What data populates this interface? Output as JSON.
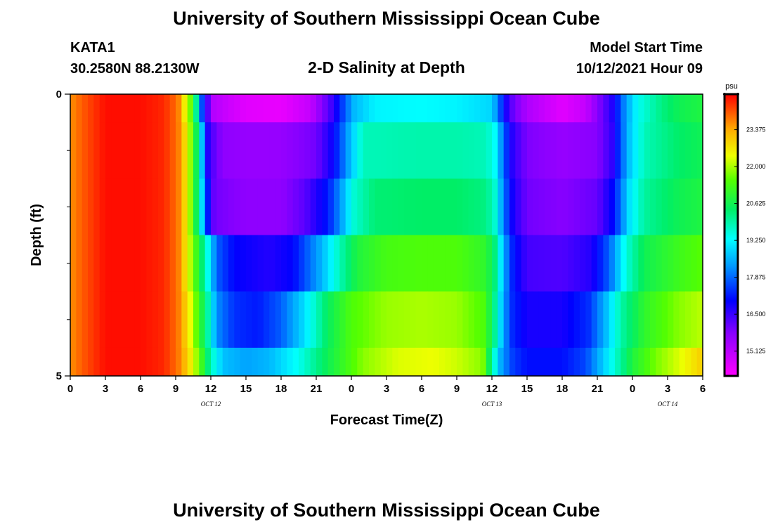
{
  "header": {
    "title": "University of Southern Mississippi Ocean Cube",
    "station": "KATA1",
    "coords": "30.2580N  88.2130W",
    "plot_title": "2-D Salinity at Depth",
    "model_label": "Model Start Time",
    "model_time": "10/12/2021 Hour 09"
  },
  "footer": {
    "title": "University of Southern Mississippi Ocean Cube"
  },
  "chart_data": {
    "type": "heatmap",
    "title": "2-D Salinity at Depth",
    "xlabel": "Forecast Time(Z)",
    "ylabel": "Depth (ft)",
    "x_unit": "hours since 10/12/2021 00Z",
    "x_tick_hours": [
      0,
      3,
      6,
      9,
      12,
      15,
      18,
      21,
      24,
      27,
      30,
      33,
      36,
      39,
      42,
      45,
      48,
      51,
      54
    ],
    "x_tick_labels": [
      "0",
      "3",
      "6",
      "9",
      "12",
      "15",
      "18",
      "21",
      "0",
      "3",
      "6",
      "9",
      "12",
      "15",
      "18",
      "21",
      "0",
      "3",
      "6"
    ],
    "date_labels": [
      {
        "hour": 12,
        "text": "OCT 12"
      },
      {
        "hour": 36,
        "text": "OCT 13"
      },
      {
        "hour": 51,
        "text": "OCT 14"
      }
    ],
    "xlim": [
      0,
      54
    ],
    "ylim": [
      0,
      5
    ],
    "y_tick_labels": [
      {
        "value": 0,
        "text": "0"
      },
      {
        "value": 5,
        "text": "5"
      }
    ],
    "y_minor_ticks": [
      1,
      2,
      3,
      4
    ],
    "depth_bounds": [
      0,
      0.5,
      1.5,
      2.5,
      3.5,
      4.5,
      5
    ],
    "colorbar": {
      "unit": "psu",
      "min": 14.2,
      "max": 24.7,
      "tick_values": [
        23.375,
        22.0,
        20.625,
        19.25,
        17.875,
        16.5,
        15.125
      ],
      "tick_labels": [
        "23.375",
        "22.000",
        "20.625",
        "19.250",
        "17.875",
        "16.500",
        "15.125"
      ],
      "stops": [
        {
          "value": 14.2,
          "color": "#ff00ff"
        },
        {
          "value": 15.8,
          "color": "#8800ff"
        },
        {
          "value": 17.0,
          "color": "#0000ff"
        },
        {
          "value": 18.3,
          "color": "#0099ff"
        },
        {
          "value": 19.3,
          "color": "#00ffff"
        },
        {
          "value": 20.4,
          "color": "#00ee66"
        },
        {
          "value": 21.5,
          "color": "#55ff00"
        },
        {
          "value": 22.4,
          "color": "#eeff00"
        },
        {
          "value": 23.4,
          "color": "#ffaa00"
        },
        {
          "value": 24.7,
          "color": "#ff0000"
        }
      ]
    },
    "series": [
      {
        "depth_ft": 0,
        "hours": [
          0,
          1,
          3,
          6,
          8,
          9.2,
          9.8,
          10.6,
          11.0,
          11.5,
          12.2,
          13.5,
          15,
          18,
          20.5,
          22.5,
          23.3,
          24.2,
          26,
          30,
          33,
          36,
          36.8,
          37.5,
          39,
          42,
          44,
          46.4,
          47.4,
          48.5,
          50.5,
          52,
          54
        ],
        "values": [
          23.6,
          24.0,
          24.6,
          24.6,
          24.4,
          23.8,
          22.5,
          21.0,
          18.5,
          16.8,
          15.2,
          14.9,
          14.6,
          14.5,
          15.0,
          16.6,
          17.6,
          18.6,
          19.2,
          19.3,
          19.2,
          18.9,
          17.5,
          16.3,
          15.3,
          14.6,
          15.0,
          16.8,
          18.3,
          19.4,
          20.2,
          20.6,
          20.8
        ]
      },
      {
        "depth_ft": 1,
        "hours": [
          0,
          1,
          3,
          6,
          8,
          9.2,
          10,
          10.8,
          11.3,
          11.8,
          13,
          15,
          18,
          21,
          22.5,
          23.8,
          25,
          30,
          33,
          35.5,
          36.3,
          37,
          37.8,
          39,
          42,
          45,
          46.3,
          47.6,
          49,
          52,
          54
        ],
        "values": [
          23.6,
          24.0,
          24.6,
          24.6,
          24.4,
          23.8,
          22.5,
          20.5,
          18.5,
          16.5,
          15.7,
          15.6,
          15.6,
          16.0,
          17.0,
          18.5,
          19.8,
          19.9,
          19.9,
          19.8,
          19.3,
          17.8,
          16.6,
          15.9,
          15.6,
          15.8,
          16.6,
          18.6,
          19.8,
          20.4,
          20.6
        ]
      },
      {
        "depth_ft": 2,
        "hours": [
          0,
          1,
          3,
          6,
          8,
          9.2,
          10,
          11,
          11.6,
          12.3,
          15,
          18,
          20,
          22,
          23,
          24.2,
          26,
          30,
          33,
          35.5,
          36.3,
          37,
          37.8,
          39,
          42,
          45,
          46.4,
          47.7,
          49,
          52,
          54
        ],
        "values": [
          23.6,
          24.0,
          24.6,
          24.6,
          24.4,
          23.8,
          22.5,
          20.0,
          17.5,
          16.0,
          15.7,
          15.7,
          16.2,
          17.2,
          18.2,
          19.6,
          20.3,
          20.4,
          20.4,
          20.2,
          19.6,
          18.0,
          16.8,
          16.0,
          15.8,
          16.1,
          17.1,
          19.0,
          20.0,
          20.6,
          20.8
        ]
      },
      {
        "depth_ft": 3,
        "hours": [
          0,
          1,
          3,
          6,
          8,
          9.2,
          10,
          11,
          11.8,
          12.5,
          14,
          17,
          19,
          21.5,
          23,
          24.5,
          27,
          30,
          33,
          35.5,
          36.3,
          37,
          37.8,
          39,
          42,
          44.5,
          46,
          47.4,
          49,
          52,
          54
        ],
        "values": [
          23.6,
          24.0,
          24.6,
          24.6,
          24.4,
          23.8,
          22.5,
          20.8,
          19.3,
          17.8,
          17.0,
          16.7,
          17.0,
          18.6,
          19.8,
          20.8,
          21.3,
          21.4,
          21.4,
          21.0,
          20.2,
          18.5,
          17.2,
          16.4,
          16.3,
          16.7,
          17.8,
          19.5,
          20.6,
          21.2,
          21.5
        ]
      },
      {
        "depth_ft": 4,
        "hours": [
          0,
          1,
          3,
          6,
          8,
          9.2,
          10,
          11,
          11.8,
          12.5,
          14,
          16,
          18,
          20,
          22,
          24,
          27,
          30,
          33,
          35.3,
          36.1,
          36.8,
          37.6,
          39,
          42,
          44.3,
          45.7,
          47,
          49,
          52,
          54
        ],
        "values": [
          23.6,
          24.0,
          24.6,
          24.6,
          24.4,
          23.8,
          22.8,
          21.2,
          19.8,
          18.2,
          17.4,
          17.2,
          17.8,
          19.0,
          20.5,
          21.4,
          21.9,
          22.0,
          21.9,
          21.4,
          20.4,
          18.8,
          17.4,
          16.8,
          16.8,
          17.4,
          18.6,
          19.9,
          21.0,
          21.8,
          22.1
        ]
      },
      {
        "depth_ft": 5,
        "hours": [
          0,
          1,
          3,
          6,
          8,
          9.2,
          10,
          11,
          12,
          13,
          15,
          17,
          19.5,
          22,
          25,
          28,
          31,
          33,
          35.2,
          36,
          36.8,
          37.8,
          39,
          42,
          44,
          46,
          48,
          50,
          52,
          54
        ],
        "values": [
          23.6,
          24.0,
          24.6,
          24.6,
          24.4,
          23.8,
          23.0,
          21.6,
          19.8,
          18.7,
          18.4,
          18.6,
          19.4,
          20.6,
          21.8,
          22.3,
          22.4,
          22.2,
          21.8,
          20.0,
          18.4,
          17.5,
          17.1,
          17.1,
          17.6,
          19.2,
          20.8,
          21.7,
          22.3,
          23.0
        ]
      }
    ]
  }
}
